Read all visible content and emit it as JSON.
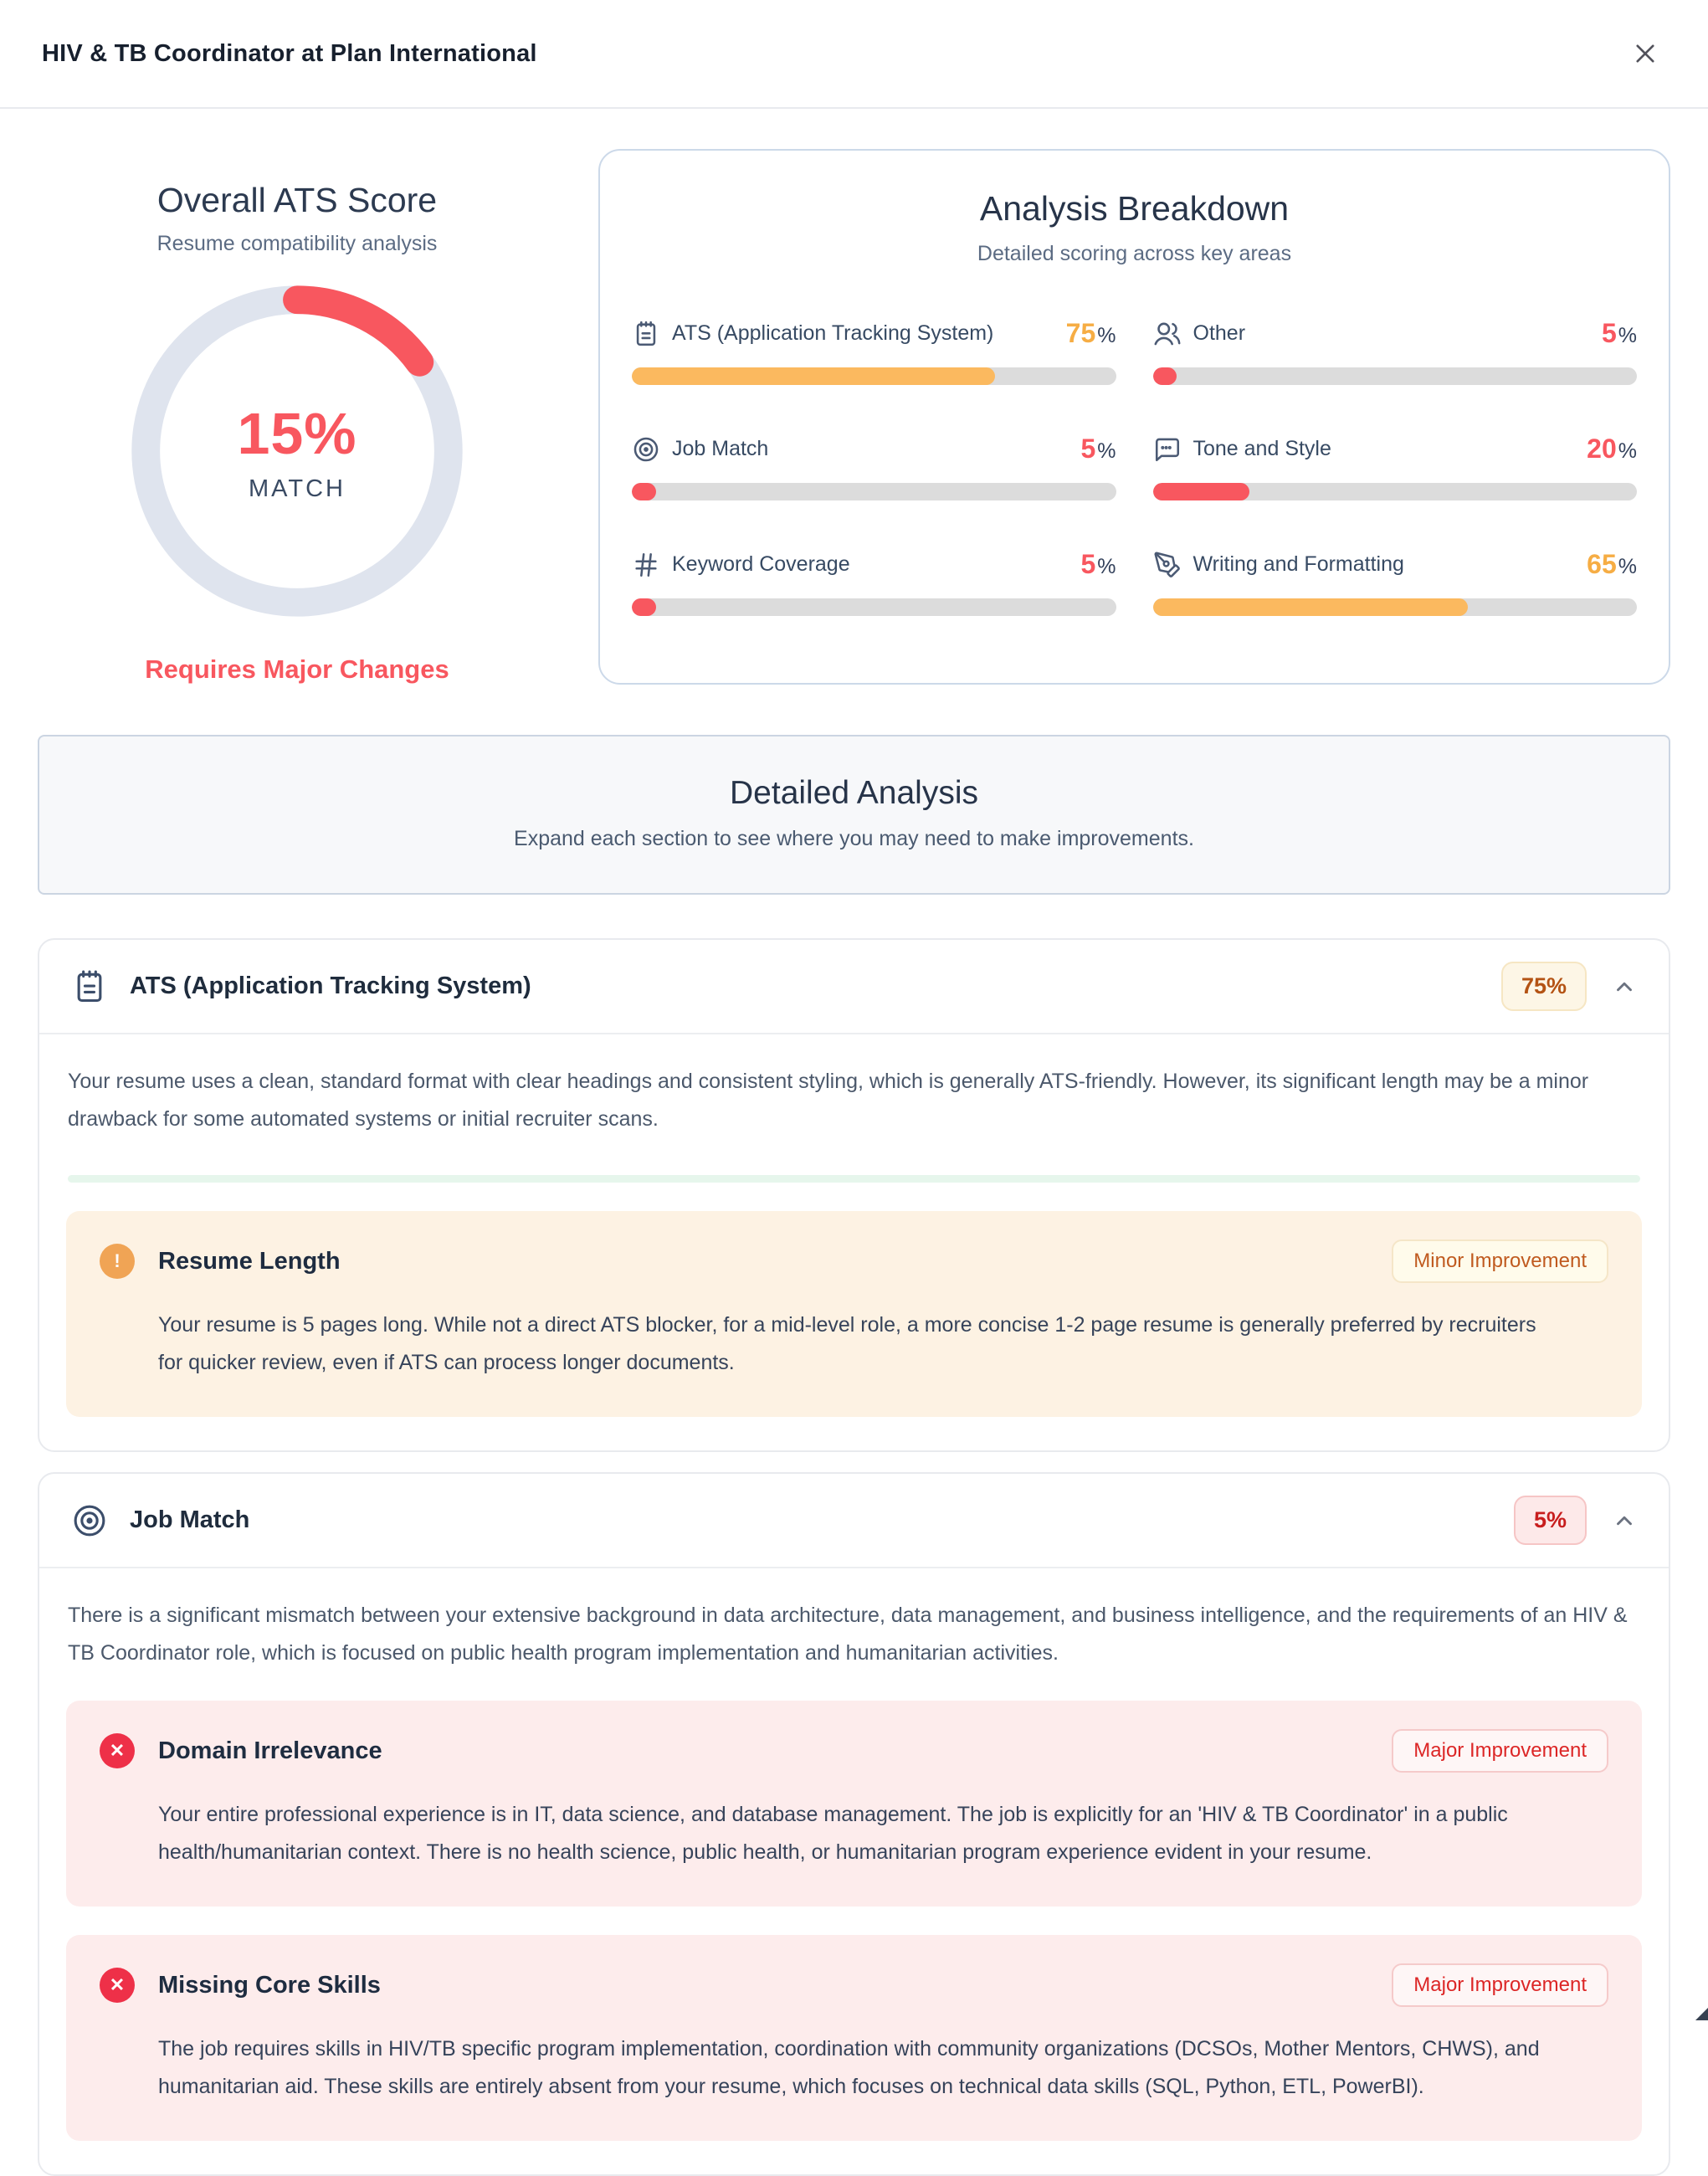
{
  "header": {
    "title": "HIV & TB Coordinator at Plan International"
  },
  "overall": {
    "title": "Overall ATS Score",
    "subtitle": "Resume compatibility analysis",
    "score": 15,
    "score_label": "15%",
    "match_label": "MATCH",
    "verdict": "Requires Major Changes"
  },
  "breakdown": {
    "title": "Analysis Breakdown",
    "subtitle": "Detailed scoring across key areas",
    "metrics": [
      {
        "icon": "clipboard-icon",
        "label": "ATS (Application Tracking System)",
        "value": 75,
        "unit": "%",
        "color": "#f6ad44"
      },
      {
        "icon": "users-icon",
        "label": "Other",
        "value": 5,
        "unit": "%",
        "color": "#f8575f"
      },
      {
        "icon": "target-icon",
        "label": "Job Match",
        "value": 5,
        "unit": "%",
        "color": "#f8575f"
      },
      {
        "icon": "chat-bubble-icon",
        "label": "Tone and Style",
        "value": 20,
        "unit": "%",
        "color": "#f8575f"
      },
      {
        "icon": "hash-icon",
        "label": "Keyword Coverage",
        "value": 5,
        "unit": "%",
        "color": "#f8575f"
      },
      {
        "icon": "pen-tool-icon",
        "label": "Writing and Formatting",
        "value": 65,
        "unit": "%",
        "color": "#f6ad44"
      }
    ]
  },
  "detailed": {
    "title": "Detailed Analysis",
    "subtitle": "Expand each section to see where you may need to make improvements."
  },
  "sections": [
    {
      "icon": "clipboard-icon",
      "title": "ATS (Application Tracking System)",
      "badge": "75%",
      "summary": "Your resume uses a clean, standard format with clear headings and consistent styling, which is generally ATS-friendly. However, its significant length may be a minor drawback for some automated systems or initial recruiter scans.",
      "findings": [
        {
          "icon": "warning-icon",
          "glyph": "!",
          "title": "Resume Length",
          "severity": "Minor Improvement",
          "text": "Your resume is 5 pages long. While not a direct ATS blocker, for a mid-level role, a more concise 1-2 page resume is generally preferred by recruiters for quicker review, even if ATS can process longer documents."
        }
      ]
    },
    {
      "icon": "target-icon",
      "title": "Job Match",
      "badge": "5%",
      "summary": "There is a significant mismatch between your extensive background in data architecture, data management, and business intelligence, and the requirements of an HIV & TB Coordinator role, which is focused on public health program implementation and humanitarian activities.",
      "findings": [
        {
          "icon": "error-icon",
          "glyph": "✕",
          "title": "Domain Irrelevance",
          "severity": "Major Improvement",
          "text": "Your entire professional experience is in IT, data science, and database management. The job is explicitly for an 'HIV & TB Coordinator' in a public health/humanitarian context. There is no health science, public health, or humanitarian program experience evident in your resume."
        },
        {
          "icon": "error-icon",
          "glyph": "✕",
          "title": "Missing Core Skills",
          "severity": "Major Improvement",
          "text": "The job requires skills in HIV/TB specific program implementation, coordination with community organizations (DCSOs, Mother Mentors, CHWS), and humanitarian aid. These skills are entirely absent from your resume, which focuses on technical data skills (SQL, Python, ETL, PowerBI)."
        }
      ]
    }
  ],
  "colors": {
    "coral": "#f8575f",
    "orange_bar": "#fbb95f",
    "orange_value": "#f6ad44",
    "bar_track": "#dcdcdc",
    "gauge_track": "#dfe4ee",
    "badge_orange_text": "#b45314",
    "badge_red_text": "#c81e1e"
  }
}
